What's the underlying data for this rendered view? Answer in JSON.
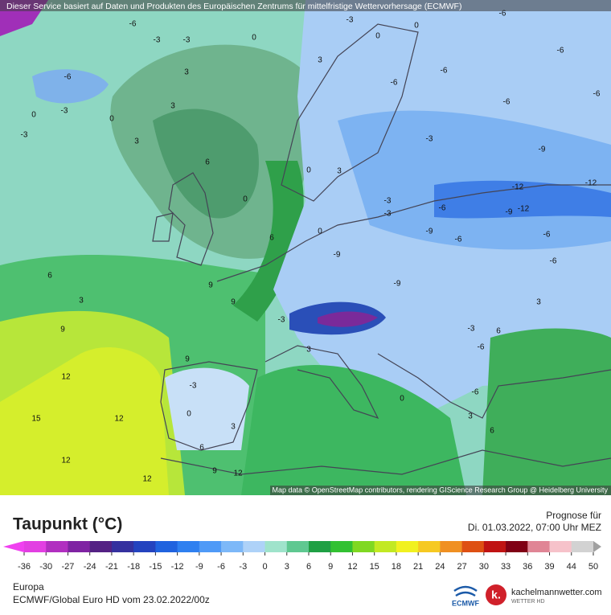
{
  "header": {
    "notice": "Dieser Service basiert auf Daten und Produkten des Europäischen Zentrums für mittelfristige Wettervorhersage (ECMWF)"
  },
  "map": {
    "attribution": "Map data © OpenStreetMap contributors, rendering GIScience Research Group @ Heidelberg University",
    "contour_labels": [
      -6,
      -3,
      -3,
      0,
      -3,
      0,
      0,
      -6,
      -6,
      -6,
      -6,
      -3,
      0,
      3,
      3,
      3,
      0,
      -3,
      -6,
      -6,
      -6,
      -9,
      -12,
      -12,
      -9,
      -12,
      0,
      3,
      6,
      0,
      -9,
      -9,
      -6,
      -6,
      -6,
      -3,
      -9,
      -3,
      -6,
      -3,
      3,
      6,
      0,
      6,
      9,
      9,
      3,
      9,
      12,
      15,
      12,
      12,
      12,
      9,
      -3,
      0,
      3,
      6,
      9,
      12,
      6,
      3,
      -3,
      -6,
      -6,
      -3,
      3,
      0,
      3,
      6
    ]
  },
  "legend": {
    "title": "Taupunkt (°C)",
    "ticks": [
      -36,
      -30,
      -27,
      -24,
      -21,
      -18,
      -15,
      -12,
      -9,
      -6,
      -3,
      0,
      3,
      6,
      9,
      12,
      15,
      18,
      21,
      24,
      27,
      30,
      33,
      36,
      39,
      44,
      50
    ],
    "colors": [
      "#e23fe2",
      "#b12fc0",
      "#7f23a3",
      "#542184",
      "#35319f",
      "#2443bf",
      "#2063df",
      "#2f80f0",
      "#4f9af7",
      "#7db8f8",
      "#aed2f8",
      "#9fe3cb",
      "#5fc891",
      "#1fa044",
      "#32c132",
      "#80d822",
      "#c2e923",
      "#f1f120",
      "#f6c922",
      "#f09022",
      "#de5013",
      "#c01313",
      "#800015",
      "#e08595",
      "#f6c2ca",
      "#d2d2d2"
    ],
    "end_colors": [
      "#f040f0",
      "#a0a0a0"
    ]
  },
  "forecast": {
    "label": "Prognose für",
    "time": "Di. 01.03.2022, 07:00 Uhr MEZ"
  },
  "footer": {
    "region": "Europa",
    "model": "ECMWF/Global Euro HD vom  23.02.2022/00z",
    "ecmwf": "ECMWF",
    "site": "kachelmannwetter.com",
    "site_sub": "WETTER HD"
  }
}
